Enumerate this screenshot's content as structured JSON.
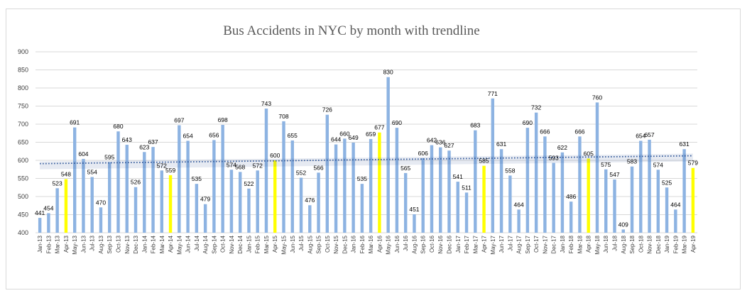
{
  "chart_data": {
    "type": "bar",
    "title": "Bus Accidents in NYC by month with trendline",
    "xlabel": "",
    "ylabel": "",
    "ylim": [
      400,
      900
    ],
    "yticks": [
      400,
      450,
      500,
      550,
      600,
      650,
      700,
      750,
      800,
      850,
      900
    ],
    "grid": true,
    "legend": "none",
    "trendline": true,
    "colors": {
      "bar": "#8db3e2",
      "highlight": "#ffff00",
      "trend": "#2e5597",
      "grid": "#d9d9d9"
    },
    "highlighted_categories": [
      "Apr-13",
      "Apr-14",
      "Apr-15",
      "Apr-16",
      "Apr-17",
      "Apr-18",
      "Apr-19"
    ],
    "categories": [
      "Jan-13",
      "Feb-13",
      "Mar-13",
      "Apr-13",
      "May-13",
      "Jun-13",
      "Jul-13",
      "Aug-13",
      "Sep-13",
      "Oct-13",
      "Nov-13",
      "Dec-13",
      "Jan-14",
      "Feb-14",
      "Mar-14",
      "Apr-14",
      "May-14",
      "Jun-14",
      "Jul-14",
      "Aug-14",
      "Sep-14",
      "Oct-14",
      "Nov-14",
      "Dec-14",
      "Jan-15",
      "Feb-15",
      "Mar-15",
      "Apr-15",
      "May-15",
      "Jun-15",
      "Jul-15",
      "Aug-15",
      "Sep-15",
      "Oct-15",
      "Nov-15",
      "Dec-15",
      "Jan-16",
      "Feb-16",
      "Mar-16",
      "Apr-16",
      "May-16",
      "Jun-16",
      "Jul-16",
      "Aug-16",
      "Sep-16",
      "Oct-16",
      "Nov-16",
      "Dec-16",
      "Jan-17",
      "Feb-17",
      "Mar-17",
      "Apr-17",
      "May-17",
      "Jun-17",
      "Jul-17",
      "Aug-17",
      "Sep-17",
      "Oct-17",
      "Nov-17",
      "Dec-17",
      "Jan-18",
      "Feb-18",
      "Mar-18",
      "Apr-18",
      "May-18",
      "Jun-18",
      "Jul-18",
      "Aug-18",
      "Sep-18",
      "Oct-18",
      "Nov-18",
      "Dec-18",
      "Jan-19",
      "Feb-19",
      "Mar-19",
      "Apr-19"
    ],
    "values": [
      441,
      454,
      523,
      548,
      691,
      604,
      554,
      470,
      595,
      680,
      643,
      526,
      623,
      637,
      572,
      559,
      697,
      654,
      535,
      479,
      656,
      698,
      574,
      568,
      522,
      572,
      743,
      600,
      708,
      655,
      552,
      476,
      566,
      726,
      644,
      660,
      649,
      535,
      659,
      677,
      830,
      690,
      565,
      451,
      606,
      642,
      636,
      627,
      541,
      511,
      683,
      585,
      771,
      631,
      558,
      464,
      690,
      732,
      666,
      593,
      622,
      486,
      666,
      605,
      760,
      575,
      547,
      409,
      583,
      654,
      657,
      574,
      525,
      464,
      631,
      579
    ]
  }
}
